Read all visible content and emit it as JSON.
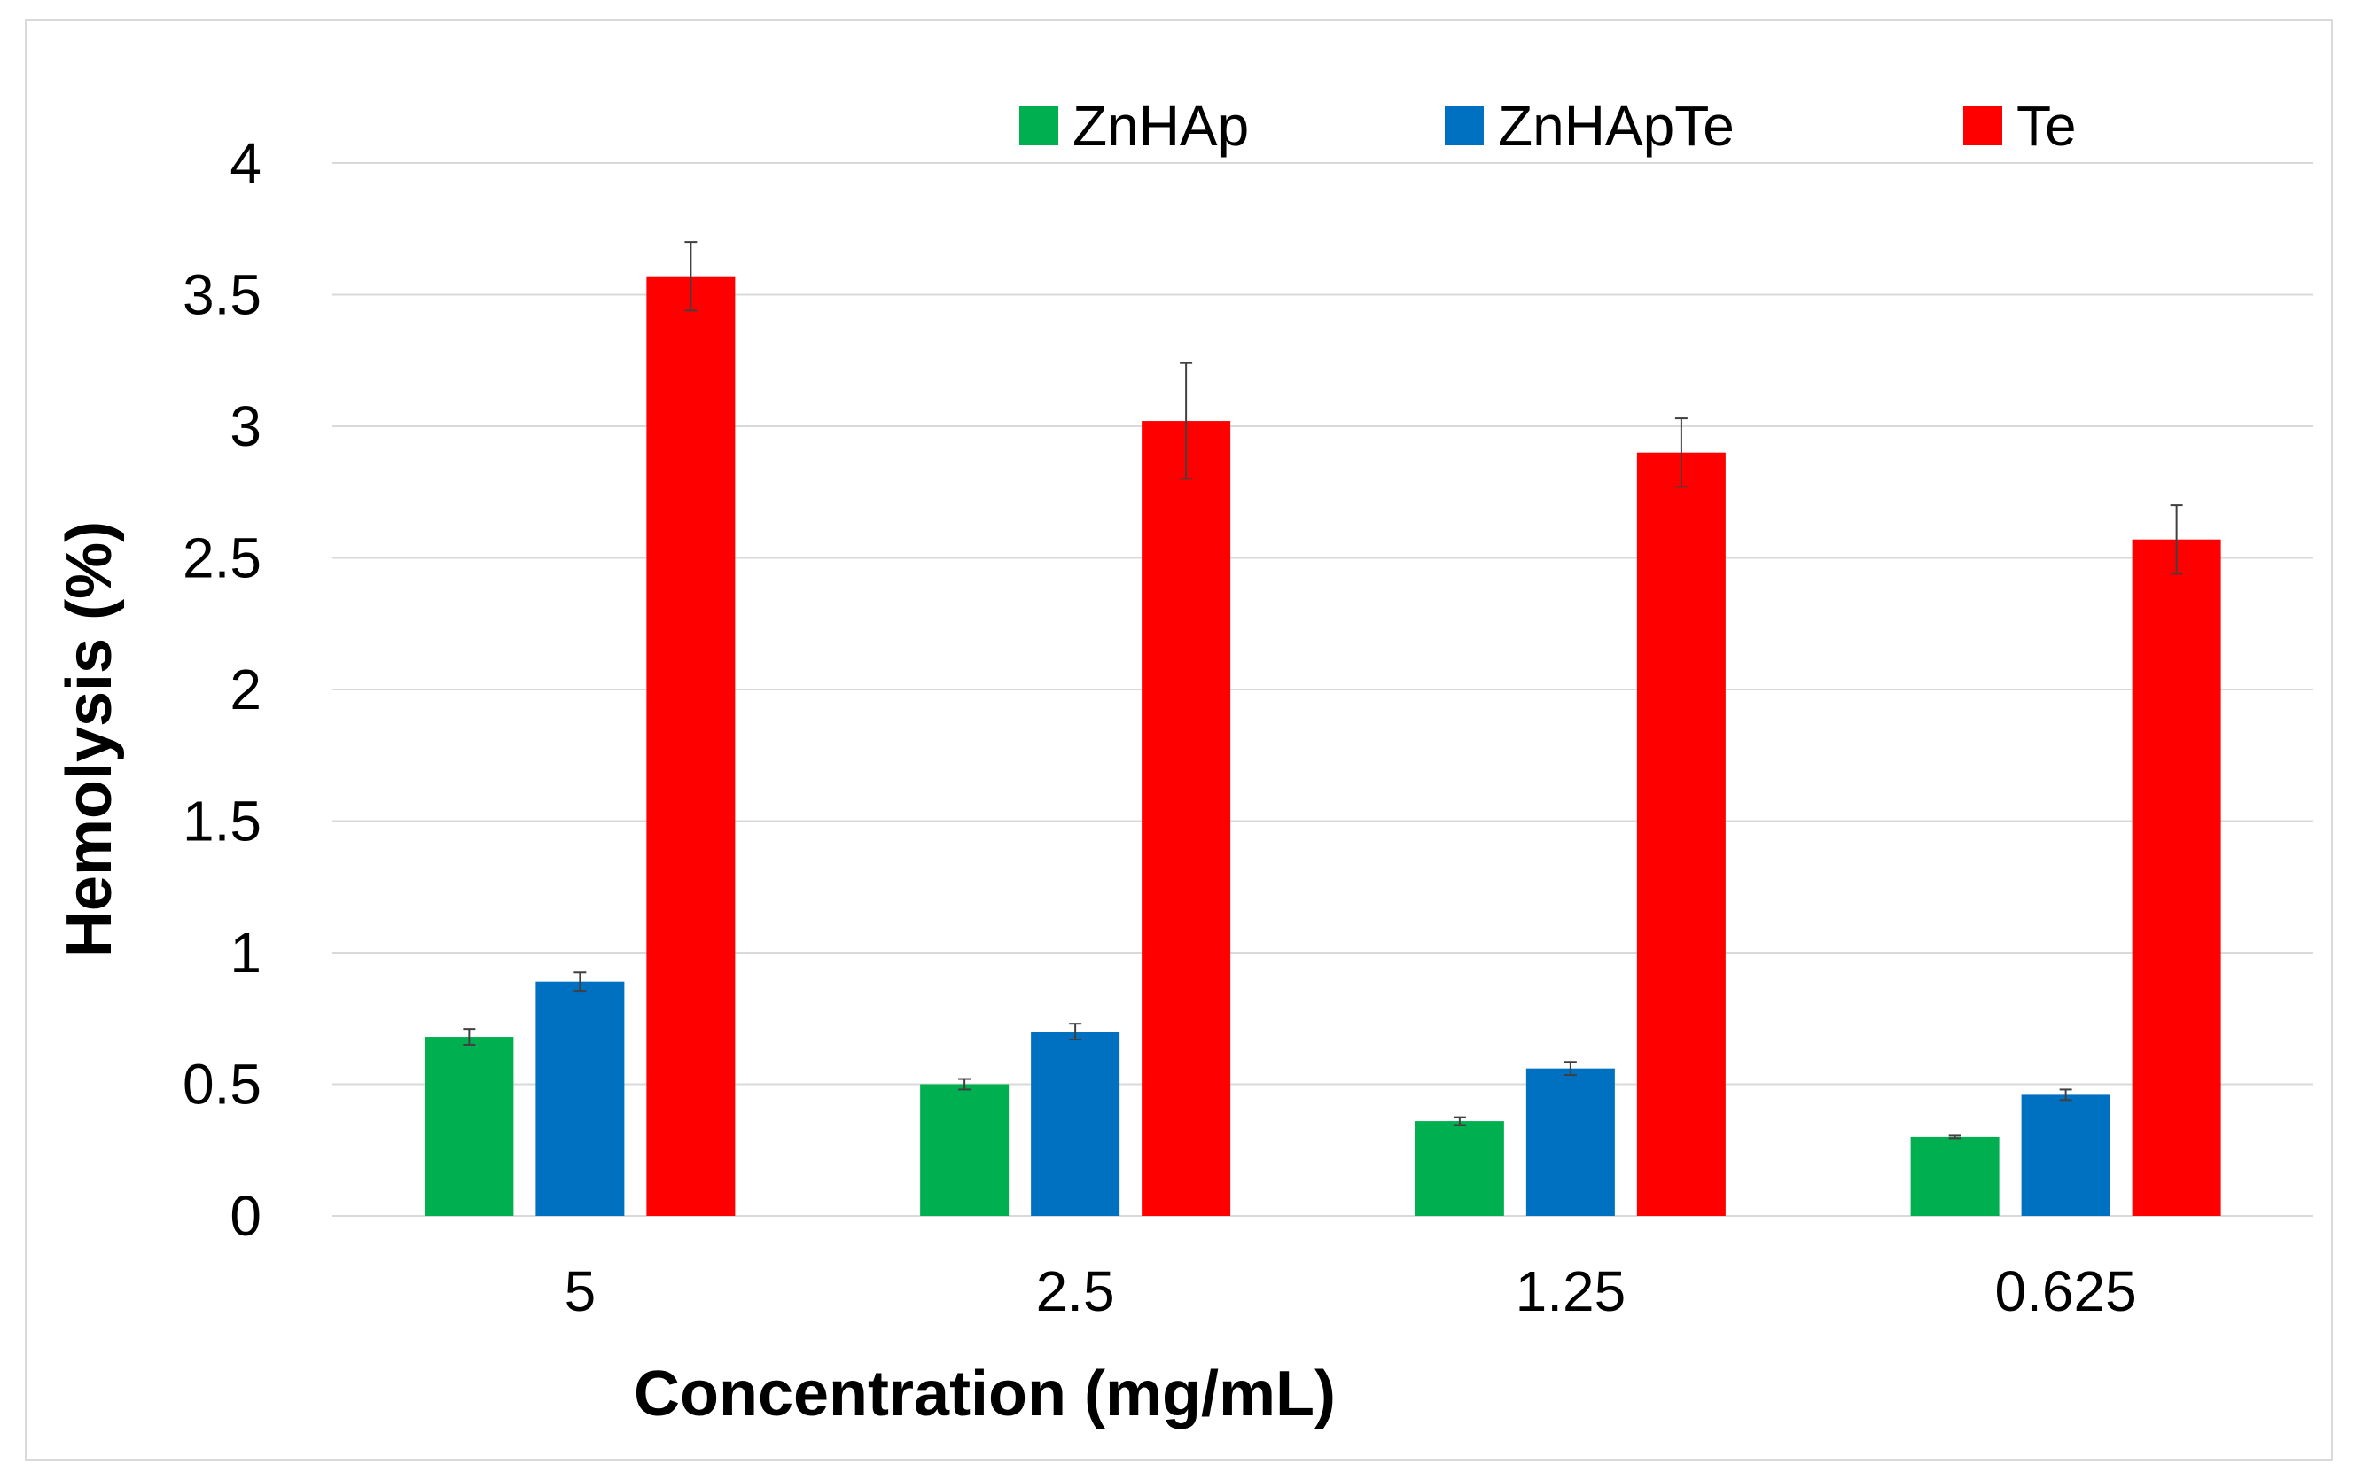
{
  "chart_data": {
    "type": "bar",
    "title": "",
    "xlabel": "Concentration (mg/mL)",
    "ylabel": "Hemolysis (%)",
    "ylim": [
      0,
      4
    ],
    "yticks": [
      "0",
      "0.5",
      "1",
      "1.5",
      "2",
      "2.5",
      "3",
      "3.5",
      "4"
    ],
    "ytick_values": [
      0,
      0.5,
      1,
      1.5,
      2,
      2.5,
      3,
      3.5,
      4
    ],
    "grid": true,
    "legend_position": "top",
    "categories": [
      "5",
      "2.5",
      "1.25",
      "0.625"
    ],
    "series": [
      {
        "name": "ZnHAp",
        "color": "#00b050",
        "values": [
          0.68,
          0.5,
          0.36,
          0.3
        ],
        "errors": [
          0.03,
          0.02,
          0.015,
          0.005
        ]
      },
      {
        "name": "ZnHApTe",
        "color": "#0070c0",
        "values": [
          0.89,
          0.7,
          0.56,
          0.46
        ],
        "errors": [
          0.035,
          0.03,
          0.025,
          0.02
        ]
      },
      {
        "name": "Te",
        "color": "#ff0000",
        "values": [
          3.57,
          3.02,
          2.9,
          2.57
        ],
        "errors": [
          0.13,
          0.22,
          0.13,
          0.13
        ]
      }
    ]
  }
}
